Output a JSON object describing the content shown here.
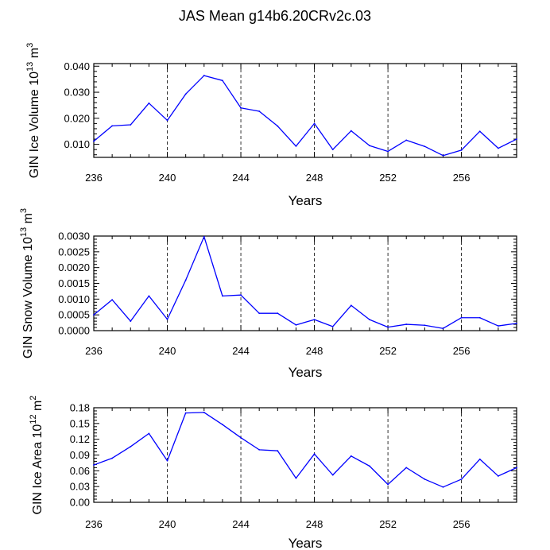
{
  "title": "JAS Mean g14b6.20CRv2c.03",
  "colors": {
    "line": "#0000ff",
    "axis": "#000000"
  },
  "chart_data": [
    {
      "type": "line",
      "title": "",
      "xlabel": "Years",
      "ylabel": "GIN Ice Volume 10^13 m^3",
      "ylabel_base": "GIN Ice Volume 10",
      "ylabel_exp": "13",
      "ylabel_unit": " m",
      "ylabel_unit_exp": "3",
      "xlim": [
        236,
        259
      ],
      "ylim": [
        0.005,
        0.041
      ],
      "xticks": [
        236,
        240,
        244,
        248,
        252,
        256
      ],
      "xtick_labels": [
        "236",
        "240",
        "244",
        "248",
        "252",
        "256"
      ],
      "yticks": [
        0.01,
        0.02,
        0.03,
        0.04
      ],
      "ytick_labels": [
        "0.010",
        "0.020",
        "0.030",
        "0.040"
      ],
      "x": [
        236,
        237,
        238,
        239,
        240,
        241,
        242,
        243,
        244,
        245,
        246,
        247,
        248,
        249,
        250,
        251,
        252,
        253,
        254,
        255,
        256,
        257,
        258,
        259
      ],
      "series": [
        {
          "name": "GIN Ice Volume",
          "values": [
            0.0112,
            0.0171,
            0.0175,
            0.0258,
            0.0192,
            0.0293,
            0.0364,
            0.0345,
            0.024,
            0.0227,
            0.017,
            0.0093,
            0.018,
            0.008,
            0.0152,
            0.0095,
            0.0073,
            0.0116,
            0.0092,
            0.0057,
            0.0078,
            0.015,
            0.0085,
            0.012
          ]
        }
      ]
    },
    {
      "type": "line",
      "title": "",
      "xlabel": "Years",
      "ylabel": "GIN Snow Volume 10^13 m^3",
      "ylabel_base": "GIN Snow Volume 10",
      "ylabel_exp": "13",
      "ylabel_unit": " m",
      "ylabel_unit_exp": "3",
      "xlim": [
        236,
        259
      ],
      "ylim": [
        0.0,
        0.003
      ],
      "xticks": [
        236,
        240,
        244,
        248,
        252,
        256
      ],
      "xtick_labels": [
        "236",
        "240",
        "244",
        "248",
        "252",
        "256"
      ],
      "yticks": [
        0.0,
        0.0005,
        0.001,
        0.0015,
        0.002,
        0.0025,
        0.003
      ],
      "ytick_labels": [
        "0.0000",
        "0.0005",
        "0.0010",
        "0.0015",
        "0.0020",
        "0.0025",
        "0.0030"
      ],
      "x": [
        236,
        237,
        238,
        239,
        240,
        241,
        242,
        243,
        244,
        245,
        246,
        247,
        248,
        249,
        250,
        251,
        252,
        253,
        254,
        255,
        256,
        257,
        258,
        259
      ],
      "series": [
        {
          "name": "GIN Snow Volume",
          "values": [
            0.0005,
            0.00098,
            0.0003,
            0.0011,
            0.00036,
            0.0016,
            0.00298,
            0.0011,
            0.00113,
            0.00055,
            0.00055,
            0.00018,
            0.00035,
            0.00013,
            0.0008,
            0.00035,
            0.00011,
            0.0002,
            0.00017,
            7e-05,
            0.00041,
            0.00041,
            0.00015,
            0.00023
          ]
        }
      ]
    },
    {
      "type": "line",
      "title": "",
      "xlabel": "Years",
      "ylabel": "GIN Ice Area 10^12 m^2",
      "ylabel_base": "GIN Ice Area 10",
      "ylabel_exp": "12",
      "ylabel_unit": " m",
      "ylabel_unit_exp": "2",
      "xlim": [
        236,
        259
      ],
      "ylim": [
        0.0,
        0.18
      ],
      "xticks": [
        236,
        240,
        244,
        248,
        252,
        256
      ],
      "xtick_labels": [
        "236",
        "240",
        "244",
        "248",
        "252",
        "256"
      ],
      "yticks": [
        0.0,
        0.03,
        0.06,
        0.09,
        0.12,
        0.15,
        0.18
      ],
      "ytick_labels": [
        "0.00",
        "0.03",
        "0.06",
        "0.09",
        "0.12",
        "0.15",
        "0.18"
      ],
      "x": [
        236,
        237,
        238,
        239,
        240,
        241,
        242,
        243,
        244,
        245,
        246,
        247,
        248,
        249,
        250,
        251,
        252,
        253,
        254,
        255,
        256,
        257,
        258,
        259
      ],
      "series": [
        {
          "name": "GIN Ice Area",
          "values": [
            0.071,
            0.084,
            0.106,
            0.131,
            0.079,
            0.17,
            0.171,
            0.148,
            0.123,
            0.1,
            0.098,
            0.046,
            0.092,
            0.052,
            0.088,
            0.069,
            0.034,
            0.066,
            0.044,
            0.029,
            0.044,
            0.082,
            0.05,
            0.066
          ]
        }
      ]
    }
  ]
}
